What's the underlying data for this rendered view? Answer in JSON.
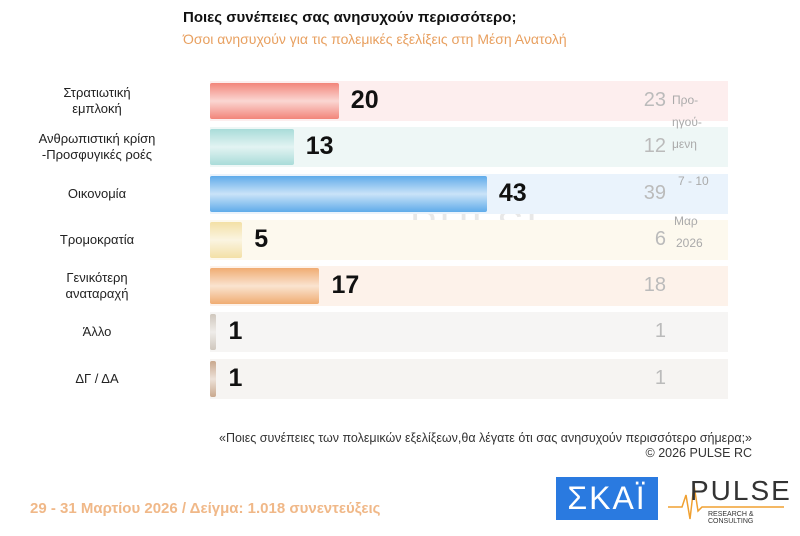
{
  "chart_data": {
    "type": "bar",
    "title": "Ποιες συνέπειες σας ανησυχούν περισσότερο;",
    "subtitle": "Όσοι ανησυχούν για τις πολεμικές εξελίξεις στη Μέση Ανατολή",
    "categories": [
      "Στρατιωτική εμπλοκή",
      "Ανθρωπιστική κρίση -Προσφυγικές ροές",
      "Οικονομία",
      "Τρομοκρατία",
      "Γενικότερη αναταραχή",
      "Άλλο",
      "ΔΓ / ΔΑ"
    ],
    "label_lines": [
      [
        "Στρατιωτική",
        "εμπλοκή"
      ],
      [
        "Ανθρωπιστική κρίση",
        "-Προσφυγικές ροές"
      ],
      [
        "Οικονομία"
      ],
      [
        "Τρομοκρατία"
      ],
      [
        "Γενικότερη",
        "αναταραχή"
      ],
      [
        "Άλλο"
      ],
      [
        "ΔΓ / ΔΑ"
      ]
    ],
    "values": [
      20,
      13,
      43,
      5,
      17,
      1,
      1
    ],
    "previous": [
      23,
      12,
      39,
      6,
      18,
      1,
      1
    ],
    "previous_label": [
      "Προ-",
      "ηγού-",
      "μενη",
      "7 - 10",
      "Μαρ",
      "2026"
    ],
    "colors": [
      "#f2857a",
      "#a9dcd9",
      "#5fabea",
      "#f3e0a6",
      "#f0ac72",
      "#cfc7bd",
      "#c9a88e"
    ],
    "row_bg": [
      "#fdeeee",
      "#eef7f6",
      "#eaf3fc",
      "#fdf9ee",
      "#fdf2ea",
      "#f6f5f4",
      "#f6f4f2"
    ],
    "xlim": [
      0,
      80
    ]
  },
  "question": "«Ποιες συνέπειες των πολεμικών εξελίξεων,θα λέγατε ότι σας ανησυχούν περισσότερο σήμερα;»",
  "copyright": "©  2026  PULSE RC",
  "footer": "29 - 31  Μαρτίου 2026  /  Δείγμα:  1.018 συνεντεύξεις",
  "logos": {
    "skai": "ΣΚΑΪ",
    "pulse": "PULSE",
    "pulse_sub": "RESEARCH & CONSULTING"
  }
}
